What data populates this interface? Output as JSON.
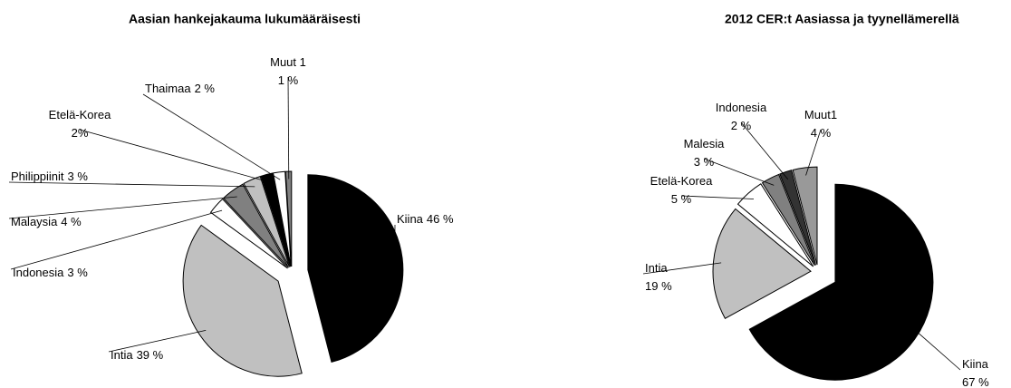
{
  "chart_data": [
    {
      "type": "pie",
      "title": "Aasian hankejakauma lukumääräisesti",
      "categories": [
        "Kiina",
        "Intia",
        "Indonesia",
        "Malaysia",
        "Philippiinit",
        "Etelä-Korea",
        "Thaimaa",
        "Muut 1"
      ],
      "values": [
        46,
        39,
        3,
        4,
        3,
        2,
        2,
        1
      ],
      "value_labels": [
        "46 %",
        "39 %",
        "3 %",
        "4 %",
        "3 %",
        "2%",
        "2 %",
        "1 %"
      ],
      "colors": [
        "#000000",
        "#c0c0c0",
        "#ffffff",
        "#808080",
        "#c0c0c0",
        "#000000",
        "#ffffff",
        "#808080"
      ]
    },
    {
      "type": "pie",
      "title": "2012 CER:t Aasiassa ja tyynellämerellä",
      "categories": [
        "Kiina",
        "Intia",
        "Etelä-Korea",
        "Malesia",
        "Indonesia",
        "Muut1"
      ],
      "values": [
        67,
        19,
        5,
        3,
        2,
        4
      ],
      "value_labels": [
        "67 %",
        "19 %",
        "5 %",
        "3 %",
        "2 %",
        "4 %"
      ],
      "colors": [
        "#000000",
        "#c0c0c0",
        "#ffffff",
        "#808080",
        "#333333",
        "#999999"
      ]
    }
  ]
}
